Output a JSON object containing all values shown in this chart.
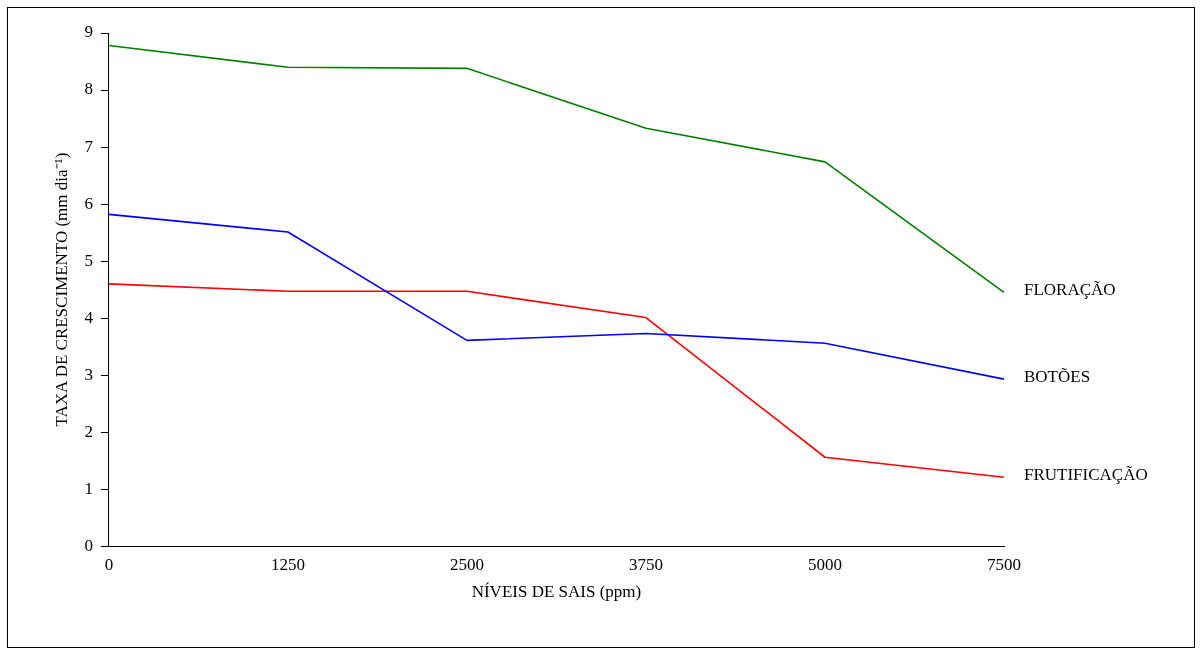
{
  "chart_data": {
    "type": "line",
    "xlabel": "NÍVEIS DE SAIS (ppm)",
    "ylabel": "TAXA DE CRESCIMENTO (mm dia⁻¹)",
    "categories": [
      "0",
      "1250",
      "2500",
      "3750",
      "5000",
      "7500"
    ],
    "ylim": [
      0,
      9
    ],
    "yticks": [
      0,
      1,
      2,
      3,
      4,
      5,
      6,
      7,
      8,
      9
    ],
    "grid": false,
    "legend": false,
    "marker": "none",
    "line_style": "solid",
    "series": [
      {
        "name": "FLORAÇÃO",
        "color": "#008000",
        "values": [
          8.78,
          8.4,
          8.38,
          7.33,
          6.74,
          4.45
        ]
      },
      {
        "name": "BOTÕES",
        "color": "#0000ff",
        "values": [
          5.82,
          5.51,
          3.61,
          3.73,
          3.56,
          2.93
        ]
      },
      {
        "name": "FRUTIFICAÇÃO",
        "color": "#ff0000",
        "values": [
          4.6,
          4.47,
          4.47,
          4.01,
          1.56,
          1.21
        ]
      }
    ]
  }
}
